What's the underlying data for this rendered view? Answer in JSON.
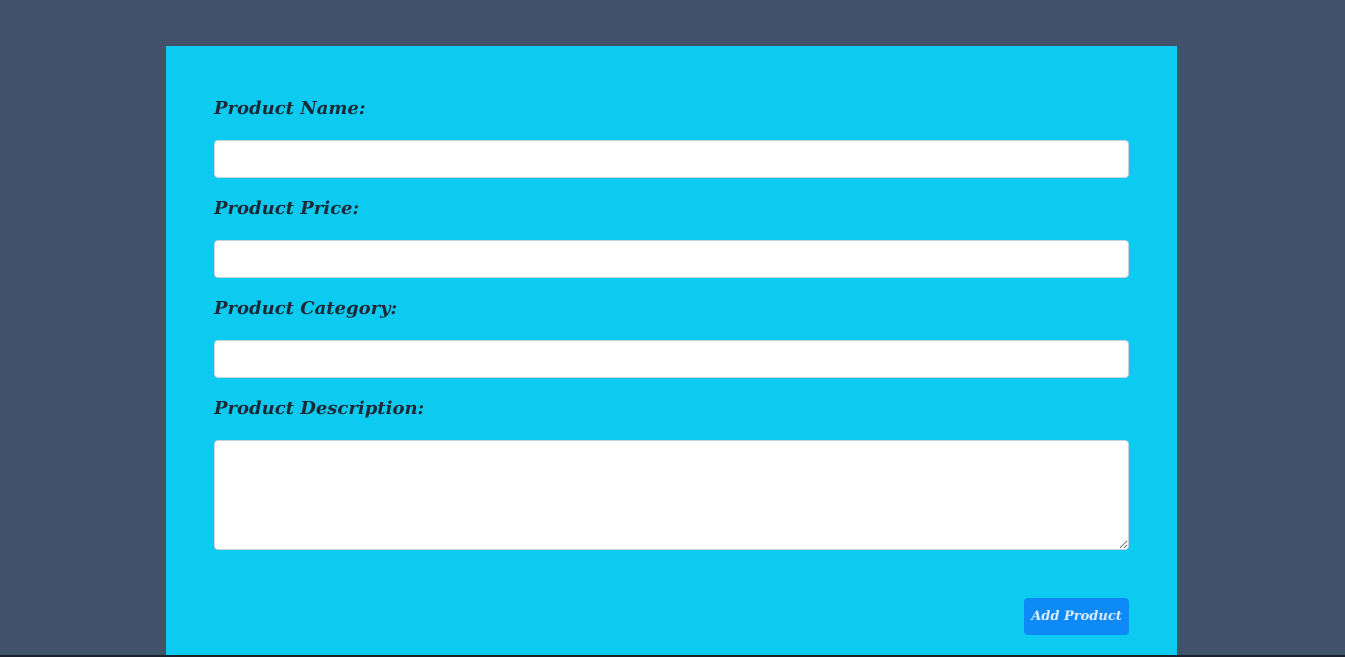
{
  "form": {
    "fields": [
      {
        "label": "Product Name:",
        "value": "",
        "placeholder": ""
      },
      {
        "label": "Product Price:",
        "value": "",
        "placeholder": ""
      },
      {
        "label": "Product Category:",
        "value": "",
        "placeholder": ""
      },
      {
        "label": "Product Description:",
        "value": "",
        "placeholder": ""
      }
    ],
    "submit_label": "Add Product"
  },
  "colors": {
    "page_background": "#42526a",
    "card_background": "#0dcaf0",
    "button_background": "#0d8af8",
    "label_text": "#1b2a36"
  }
}
